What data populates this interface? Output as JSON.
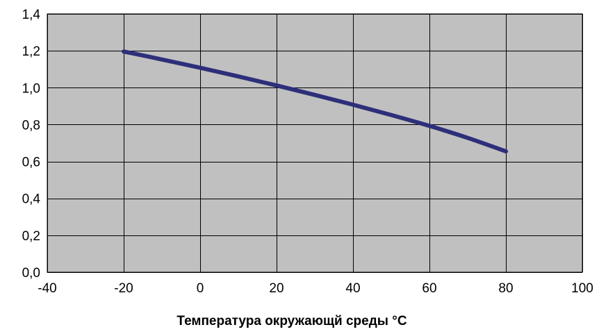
{
  "chart_data": {
    "type": "line",
    "title": "",
    "xlabel": "Температура окружающй среды  °C",
    "ylabel": "",
    "xlim": [
      -40,
      100
    ],
    "ylim": [
      0.0,
      1.4
    ],
    "x_ticks": [
      -40,
      -20,
      0,
      20,
      40,
      60,
      80,
      100
    ],
    "x_tick_labels": [
      "-40",
      "-20",
      "0",
      "20",
      "40",
      "60",
      "80",
      "100"
    ],
    "y_ticks": [
      0.0,
      0.2,
      0.4,
      0.6,
      0.8,
      1.0,
      1.2,
      1.4
    ],
    "y_tick_labels": [
      "0,0",
      "0,2",
      "0,4",
      "0,6",
      "0,8",
      "1,0",
      "1,2",
      "1,4"
    ],
    "grid": true,
    "legend": "none",
    "series": [
      {
        "x": [
          -20,
          -10,
          0,
          10,
          20,
          30,
          40,
          50,
          60,
          70,
          80
        ],
        "y": [
          1.196,
          1.153,
          1.108,
          1.061,
          1.012,
          0.961,
          0.908,
          0.852,
          0.793,
          0.728,
          0.655
        ],
        "color": "#2e2f7a"
      }
    ],
    "colors": {
      "plot_background": "#c0c0c0",
      "gridlines": "#000000",
      "line": "#2e2f7a"
    }
  }
}
